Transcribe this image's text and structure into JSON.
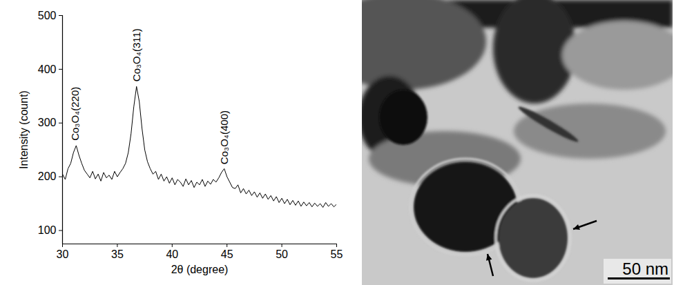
{
  "chart_data": {
    "type": "line",
    "x_label": "2θ (degree)",
    "y_label": "Intensity (count)",
    "color": "#000000",
    "xlim": [
      30,
      55
    ],
    "xticks": [
      30,
      35,
      40,
      45,
      50,
      55
    ],
    "ylim": [
      75,
      500
    ],
    "yticks": [
      100,
      200,
      300,
      400,
      500
    ],
    "x": [
      30,
      30.25,
      30.5,
      30.75,
      31,
      31.25,
      31.5,
      31.75,
      32,
      32.25,
      32.5,
      32.75,
      33,
      33.25,
      33.5,
      33.75,
      34,
      34.25,
      34.5,
      34.75,
      35,
      35.25,
      35.5,
      35.75,
      36,
      36.25,
      36.5,
      36.75,
      37,
      37.25,
      37.5,
      37.75,
      38,
      38.25,
      38.5,
      38.75,
      39,
      39.25,
      39.5,
      39.75,
      40,
      40.25,
      40.5,
      40.75,
      41,
      41.25,
      41.5,
      41.75,
      42,
      42.25,
      42.5,
      42.75,
      43,
      43.25,
      43.5,
      43.75,
      44,
      44.25,
      44.5,
      44.75,
      45,
      45.25,
      45.5,
      45.75,
      46,
      46.25,
      46.5,
      46.75,
      47,
      47.25,
      47.5,
      47.75,
      48,
      48.25,
      48.5,
      48.75,
      49,
      49.25,
      49.5,
      49.75,
      50,
      50.25,
      50.5,
      50.75,
      51,
      51.25,
      51.5,
      51.75,
      52,
      52.25,
      52.5,
      52.75,
      53,
      53.25,
      53.5,
      53.75,
      54,
      54.25,
      54.5,
      54.75,
      55
    ],
    "values": [
      205,
      195,
      215,
      225,
      245,
      258,
      240,
      225,
      212,
      205,
      198,
      210,
      196,
      205,
      192,
      208,
      198,
      203,
      195,
      210,
      200,
      208,
      215,
      225,
      245,
      280,
      330,
      368,
      340,
      290,
      250,
      228,
      215,
      205,
      210,
      195,
      205,
      192,
      200,
      188,
      198,
      185,
      195,
      190,
      182,
      196,
      185,
      193,
      180,
      190,
      185,
      195,
      182,
      192,
      186,
      195,
      190,
      198,
      208,
      215,
      200,
      190,
      180,
      178,
      185,
      170,
      178,
      168,
      175,
      165,
      172,
      162,
      170,
      160,
      168,
      158,
      165,
      155,
      163,
      152,
      160,
      150,
      158,
      148,
      156,
      147,
      155,
      145,
      153,
      146,
      152,
      144,
      151,
      145,
      150,
      143,
      152,
      145,
      150,
      144,
      149
    ],
    "annotations": [
      {
        "text": "Co₃O₄(220)",
        "x": 31.2,
        "y": 262
      },
      {
        "text": "Co₃O₄(311)",
        "x": 36.8,
        "y": 372
      },
      {
        "text": "Co₃O₄(400)",
        "x": 44.8,
        "y": 218
      }
    ]
  },
  "image": {
    "scale_bar": "50 nm"
  }
}
